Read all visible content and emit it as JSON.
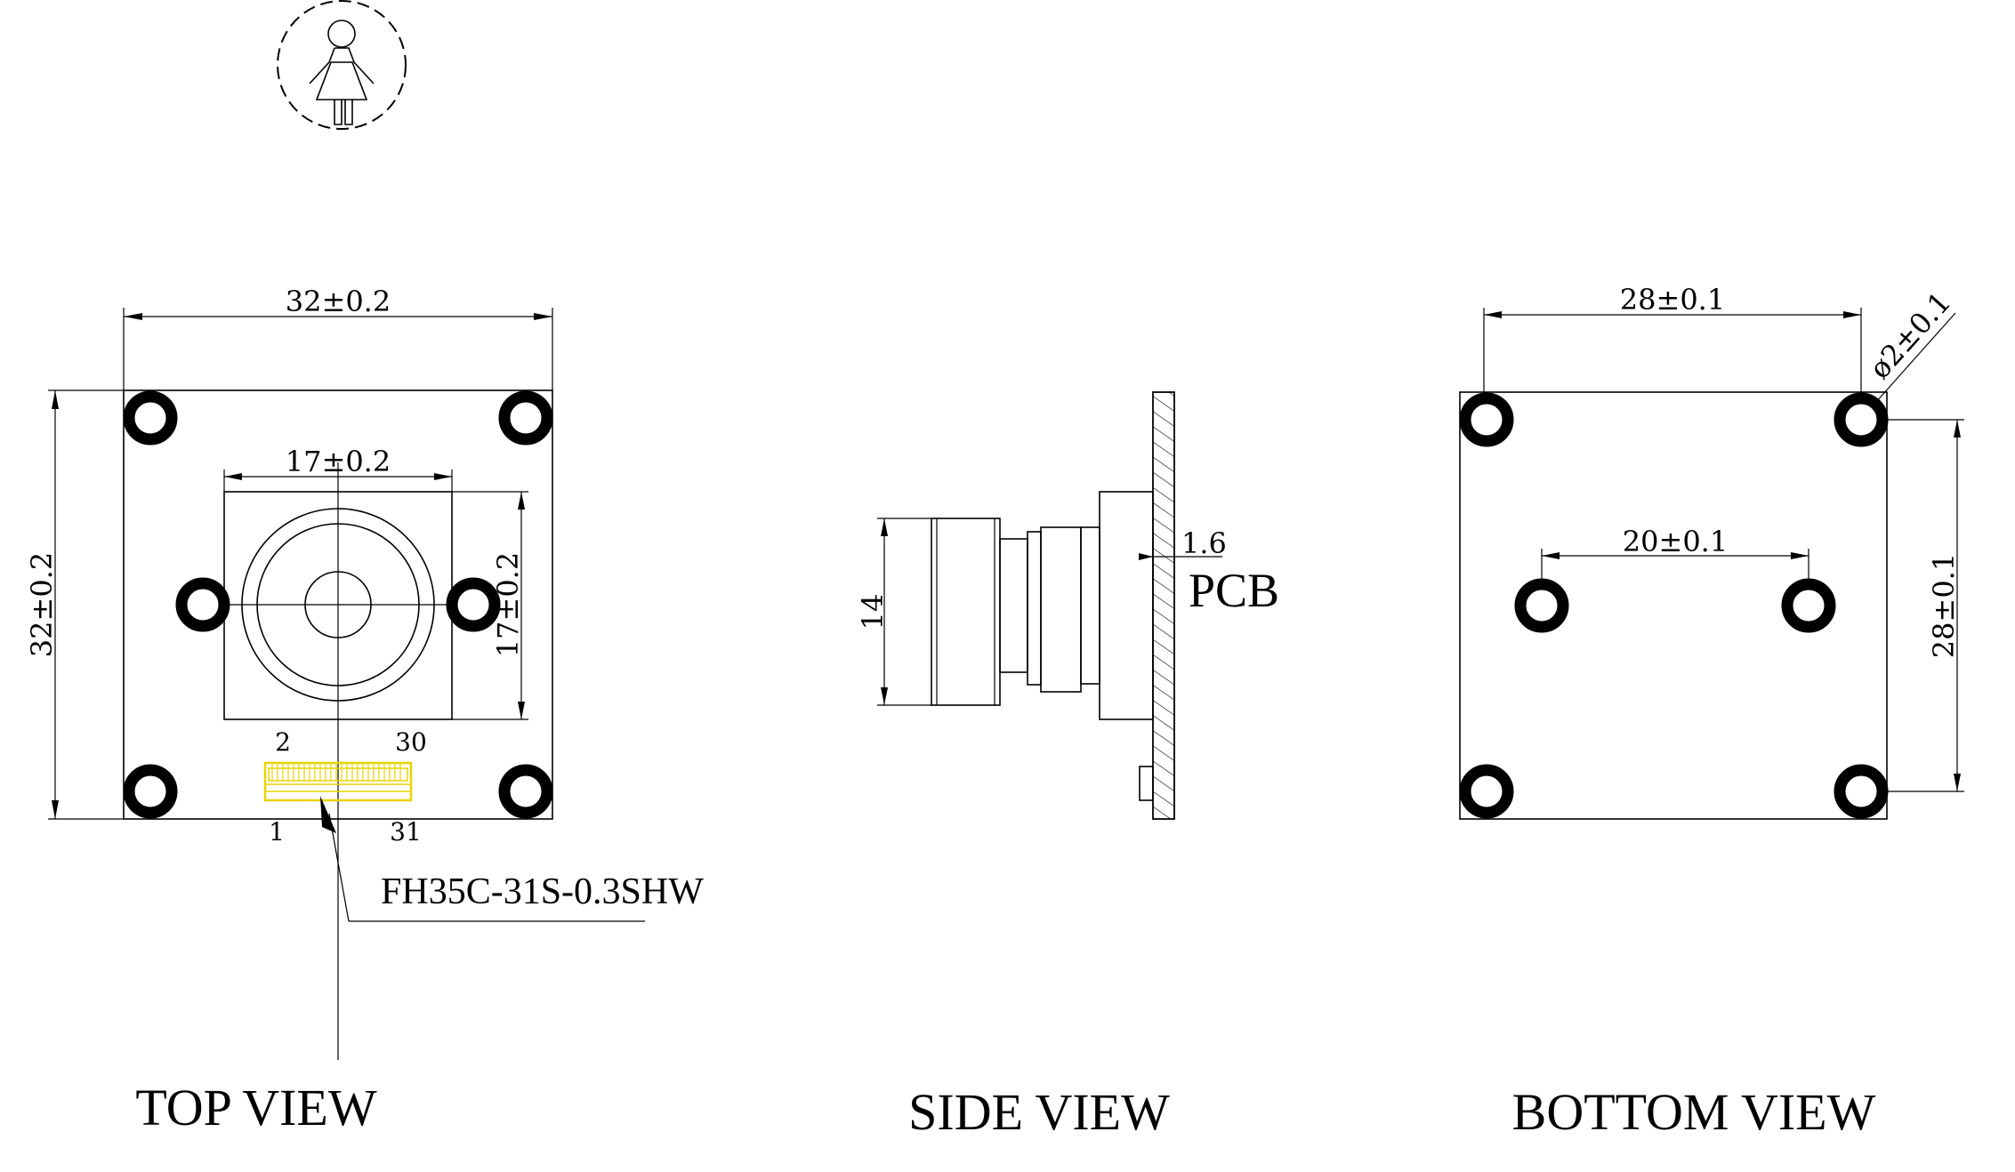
{
  "views": {
    "top": {
      "title": "TOP VIEW",
      "width_dim": "32±0.2",
      "height_dim": "32±0.2",
      "sensor_width_dim": "17±0.2",
      "sensor_height_dim": "17±0.2",
      "pin_labels": {
        "top_left": "2",
        "top_right": "30",
        "bottom_left": "1",
        "bottom_right": "31"
      },
      "connector_label": "FH35C-31S-0.3SHW"
    },
    "side": {
      "title": "SIDE VIEW",
      "lens_dim": "14",
      "pcb_thickness_dim": "1.6",
      "pcb_label": "PCB"
    },
    "bottom": {
      "title": "BOTTOM VIEW",
      "width_dim": "28±0.1",
      "height_dim": "28±0.1",
      "inner_dim": "20±0.1",
      "hole_dim": "ø2±0.1"
    }
  },
  "colors": {
    "connector": "#f0e000",
    "line": "#000000"
  },
  "icons": {
    "logo": "person-figure-icon"
  }
}
